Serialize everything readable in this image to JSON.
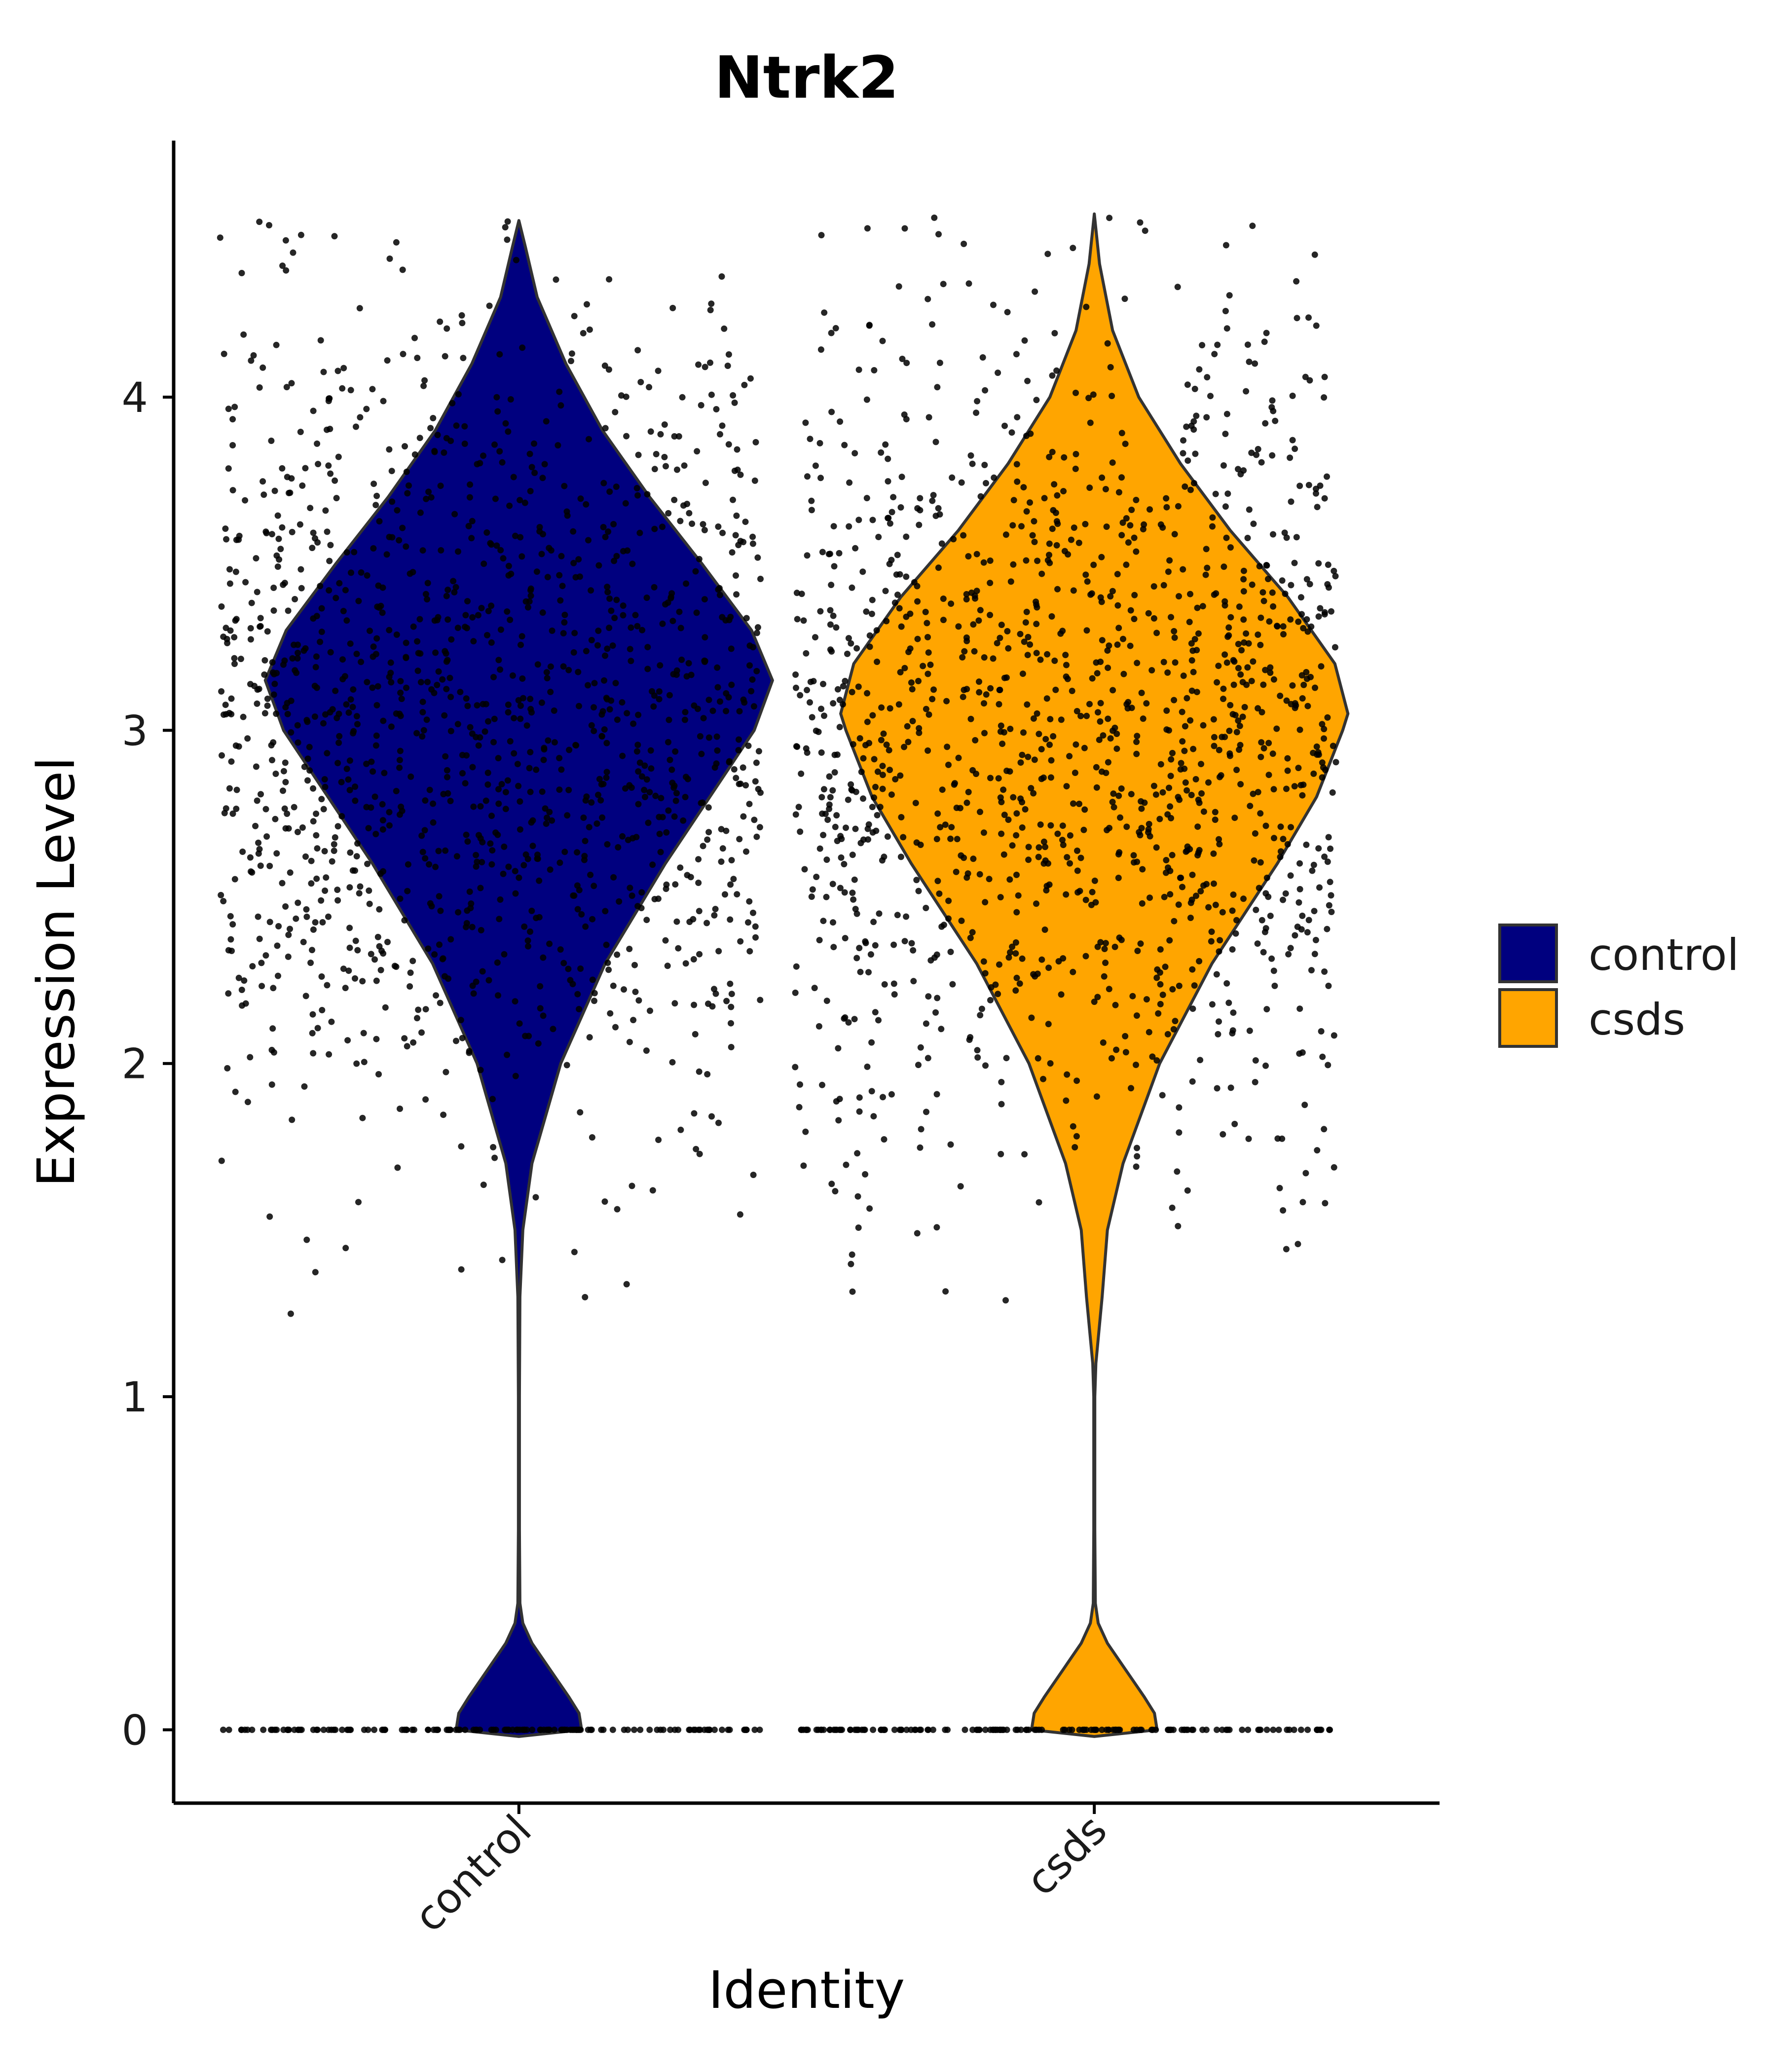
{
  "chart_data": {
    "type": "violin",
    "title": "Ntrk2",
    "xlabel": "Identity",
    "ylabel": "Expression Level",
    "ylim": [
      -0.22,
      4.77
    ],
    "yticks": [
      0,
      1,
      2,
      3,
      4
    ],
    "categories": [
      "control",
      "csds"
    ],
    "grid": false,
    "legend_position": "right",
    "series": [
      {
        "name": "control",
        "color": "#00007F",
        "x_range": [
          0.48,
          1.42
        ],
        "zero_fraction": 0.1,
        "mean": 3.05,
        "sd": 0.62,
        "density_profile": [
          [
            -0.02,
            0.0
          ],
          [
            0.0,
            0.24
          ],
          [
            0.05,
            0.23
          ],
          [
            0.1,
            0.19
          ],
          [
            0.18,
            0.12
          ],
          [
            0.26,
            0.05
          ],
          [
            0.32,
            0.015
          ],
          [
            0.38,
            0.004
          ],
          [
            0.6,
            0.002
          ],
          [
            1.0,
            0.002
          ],
          [
            1.3,
            0.004
          ],
          [
            1.5,
            0.015
          ],
          [
            1.7,
            0.05
          ],
          [
            2.0,
            0.16
          ],
          [
            2.3,
            0.33
          ],
          [
            2.6,
            0.56
          ],
          [
            2.8,
            0.73
          ],
          [
            3.0,
            0.9
          ],
          [
            3.15,
            0.97
          ],
          [
            3.3,
            0.89
          ],
          [
            3.5,
            0.7
          ],
          [
            3.7,
            0.5
          ],
          [
            3.9,
            0.32
          ],
          [
            4.1,
            0.18
          ],
          [
            4.3,
            0.07
          ],
          [
            4.45,
            0.025
          ],
          [
            4.53,
            0.0
          ]
        ]
      },
      {
        "name": "csds",
        "color": "#FFA500",
        "x_range": [
          1.48,
          2.42
        ],
        "zero_fraction": 0.1,
        "mean": 3.0,
        "sd": 0.62,
        "density_profile": [
          [
            -0.02,
            0.0
          ],
          [
            0.0,
            0.24
          ],
          [
            0.05,
            0.23
          ],
          [
            0.1,
            0.19
          ],
          [
            0.18,
            0.12
          ],
          [
            0.26,
            0.05
          ],
          [
            0.32,
            0.015
          ],
          [
            0.38,
            0.004
          ],
          [
            0.6,
            0.002
          ],
          [
            1.0,
            0.002
          ],
          [
            1.1,
            0.006
          ],
          [
            1.3,
            0.03
          ],
          [
            1.5,
            0.05
          ],
          [
            1.7,
            0.11
          ],
          [
            2.0,
            0.25
          ],
          [
            2.3,
            0.45
          ],
          [
            2.6,
            0.7
          ],
          [
            2.8,
            0.85
          ],
          [
            3.0,
            0.95
          ],
          [
            3.05,
            0.97
          ],
          [
            3.2,
            0.92
          ],
          [
            3.4,
            0.74
          ],
          [
            3.6,
            0.52
          ],
          [
            3.8,
            0.33
          ],
          [
            4.0,
            0.17
          ],
          [
            4.2,
            0.07
          ],
          [
            4.4,
            0.02
          ],
          [
            4.55,
            0.0
          ]
        ]
      }
    ]
  }
}
